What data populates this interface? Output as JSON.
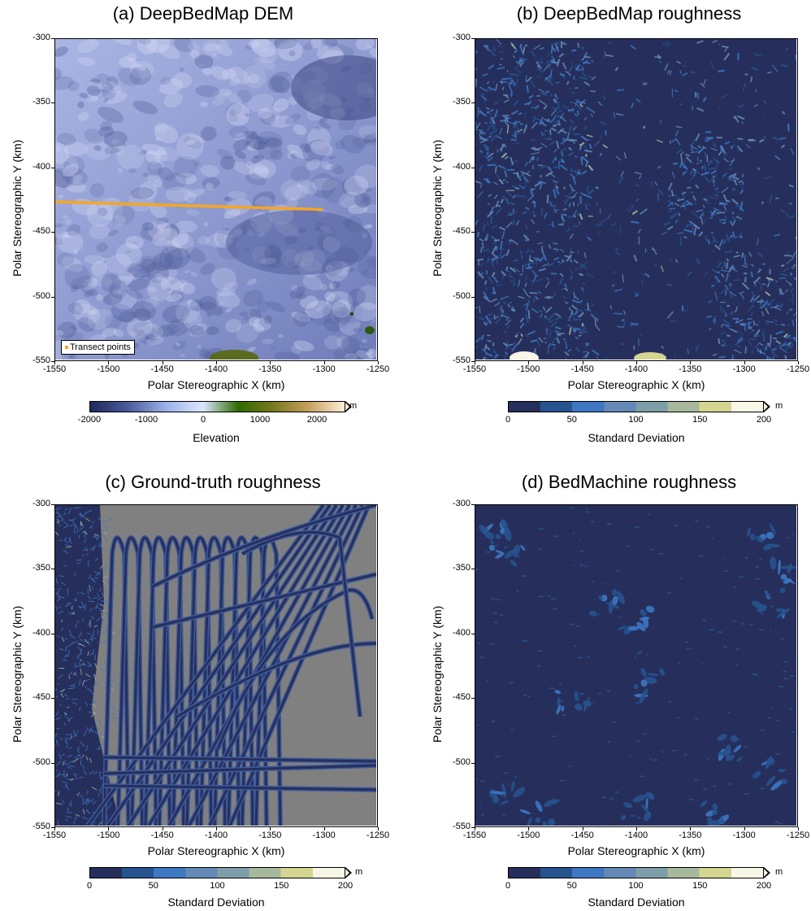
{
  "chart_data": [
    {
      "type": "heatmap",
      "title": "(a) DeepBedMap DEM",
      "xlabel": "Polar Stereographic X (km)",
      "ylabel": "Polar Stereographic Y (km)",
      "xlim": [
        -1550,
        -1250
      ],
      "ylim": [
        -550,
        -300
      ],
      "xticks": [
        "-1550",
        "-1500",
        "-1450",
        "-1400",
        "-1350",
        "-1300",
        "-1250"
      ],
      "yticks": [
        "-300",
        "-350",
        "-400",
        "-450",
        "-500",
        "-550"
      ],
      "legend": {
        "label": "Transect points",
        "position": "bottom-left"
      },
      "transect": {
        "x": [
          -1550,
          -1300
        ],
        "y": [
          -427,
          -433
        ]
      },
      "colorbar": {
        "label": "Elevation",
        "unit": "m",
        "ticks": [
          "-2000",
          "-1000",
          "0",
          "1000",
          "2000"
        ],
        "range": [
          -2000,
          2500
        ],
        "colors": [
          "#1e2a5a",
          "#4a5a9a",
          "#9ab0e8",
          "#dde6ff",
          "#2e6a00",
          "#7a7a20",
          "#c8a060",
          "#fdeed8"
        ]
      }
    },
    {
      "type": "heatmap",
      "title": "(b) DeepBedMap roughness",
      "xlabel": "Polar Stereographic X (km)",
      "ylabel": "Polar Stereographic Y (km)",
      "xlim": [
        -1550,
        -1250
      ],
      "ylim": [
        -550,
        -300
      ],
      "xticks": [
        "-1550",
        "-1500",
        "-1450",
        "-1400",
        "-1350",
        "-1300",
        "-1250"
      ],
      "yticks": [
        "-300",
        "-350",
        "-400",
        "-450",
        "-500",
        "-550"
      ],
      "colorbar": {
        "label": "Standard Deviation",
        "unit": "m",
        "ticks": [
          "0",
          "50",
          "100",
          "150",
          "200"
        ],
        "range": [
          0,
          200
        ],
        "colors": [
          "#262f5c",
          "#27538f",
          "#3e77c2",
          "#6489b6",
          "#7d9ea8",
          "#a7b99c",
          "#d4d691",
          "#f8f6e6"
        ]
      }
    },
    {
      "type": "heatmap",
      "title": "(c) Ground-truth roughness",
      "xlabel": "Polar Stereographic X (km)",
      "ylabel": "Polar Stereographic Y (km)",
      "xlim": [
        -1550,
        -1250
      ],
      "ylim": [
        -550,
        -300
      ],
      "xticks": [
        "-1550",
        "-1500",
        "-1450",
        "-1400",
        "-1350",
        "-1300",
        "-1250"
      ],
      "yticks": [
        "-300",
        "-350",
        "-400",
        "-450",
        "-500",
        "-550"
      ],
      "no_data_color": "#808080",
      "colorbar": {
        "label": "Standard Deviation",
        "unit": "m",
        "ticks": [
          "0",
          "50",
          "100",
          "150",
          "200"
        ],
        "range": [
          0,
          200
        ],
        "colors": [
          "#262f5c",
          "#27538f",
          "#3e77c2",
          "#6489b6",
          "#7d9ea8",
          "#a7b99c",
          "#d4d691",
          "#f8f6e6"
        ]
      }
    },
    {
      "type": "heatmap",
      "title": "(d) BedMachine roughness",
      "xlabel": "Polar Stereographic X (km)",
      "ylabel": "Polar Stereographic Y (km)",
      "xlim": [
        -1550,
        -1250
      ],
      "ylim": [
        -550,
        -300
      ],
      "xticks": [
        "-1550",
        "-1500",
        "-1450",
        "-1400",
        "-1350",
        "-1300",
        "-1250"
      ],
      "yticks": [
        "-300",
        "-350",
        "-400",
        "-450",
        "-500",
        "-550"
      ],
      "colorbar": {
        "label": "Standard Deviation",
        "unit": "m",
        "ticks": [
          "0",
          "50",
          "100",
          "150",
          "200"
        ],
        "range": [
          0,
          200
        ],
        "colors": [
          "#262f5c",
          "#27538f",
          "#3e77c2",
          "#6489b6",
          "#7d9ea8",
          "#a7b99c",
          "#d4d691",
          "#f8f6e6"
        ]
      }
    }
  ]
}
